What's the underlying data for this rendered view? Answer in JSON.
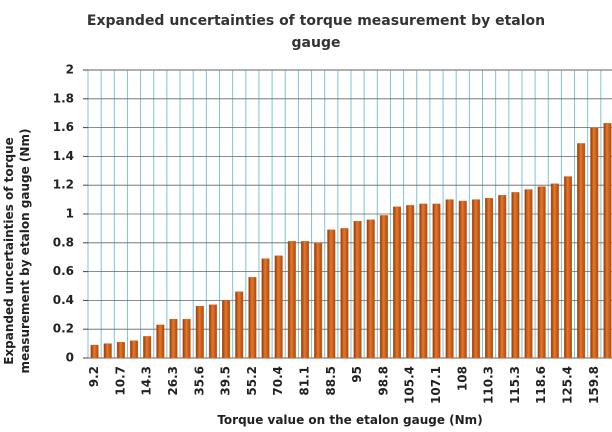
{
  "chart_data": {
    "type": "bar",
    "title": "Expanded uncertainties of torque measurement by etalon gauge",
    "x_label": "Torque value on the etalon gauge  (Nm)",
    "y_label": "Expanded uncertainties of torque measurement by etalon gauge (Nm)",
    "categories": [
      "9.2",
      null,
      "10.7",
      null,
      "14.3",
      null,
      "26.3",
      null,
      "35.6",
      null,
      "39.5",
      null,
      "55.2",
      null,
      "70.4",
      null,
      "81.1",
      null,
      "88.5",
      null,
      "95",
      null,
      "98.8",
      null,
      "105.4",
      null,
      "107.1",
      null,
      "108",
      null,
      "110.3",
      null,
      "115.3",
      null,
      "118.6",
      null,
      "125.4",
      null,
      "159.8",
      null
    ],
    "values": [
      0.09,
      0.1,
      0.11,
      0.12,
      0.15,
      0.23,
      0.27,
      0.27,
      0.36,
      0.37,
      0.4,
      0.46,
      0.56,
      0.69,
      0.71,
      0.81,
      0.81,
      0.8,
      0.89,
      0.9,
      0.95,
      0.96,
      0.99,
      1.05,
      1.06,
      1.07,
      1.07,
      1.1,
      1.09,
      1.1,
      1.11,
      1.13,
      1.15,
      1.17,
      1.19,
      1.21,
      1.26,
      1.49,
      1.6,
      1.63
    ],
    "color": "#d2601a",
    "ylim": [
      0,
      2
    ],
    "yticks": [
      0,
      0.2,
      0.4,
      0.6,
      0.8,
      1,
      1.2,
      1.4,
      1.6,
      1.8,
      2
    ],
    "grid": true
  }
}
